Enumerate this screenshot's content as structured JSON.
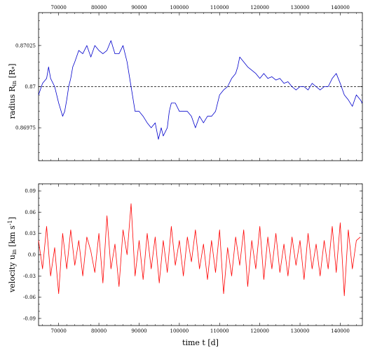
{
  "chart_data": [
    {
      "type": "line",
      "title": "",
      "xlabel": "",
      "ylabel": "radius R",
      "ylabel_sub": "in",
      "ylabel_unit": "[R",
      "ylabel_unit_sub": "*",
      "ylabel_unit_close": "]",
      "xlim": [
        65000,
        145500
      ],
      "ylim": [
        0.86955,
        0.87045
      ],
      "x_ticks": [
        70000,
        80000,
        90000,
        100000,
        110000,
        120000,
        130000,
        140000
      ],
      "x_tick_labels": [
        "70000",
        "80000",
        "90000",
        "100000",
        "110000",
        "120000",
        "130000",
        "140000"
      ],
      "y_ticks": [
        0.86975,
        0.87,
        0.87025
      ],
      "y_tick_labels": [
        "0.86975",
        "0.87",
        "0.87025"
      ],
      "reference_line": {
        "y": 0.87,
        "style": "dashed"
      },
      "series": [
        {
          "color": "#0000cc",
          "x": [
            65000,
            66000,
            67000,
            67500,
            68000,
            69000,
            70000,
            71000,
            71500,
            72000,
            72500,
            73000,
            73500,
            74000,
            75000,
            76000,
            77000,
            78000,
            79000,
            80000,
            81000,
            82000,
            83000,
            84000,
            85000,
            86000,
            87000,
            88000,
            89000,
            90000,
            91000,
            92000,
            93000,
            94000,
            94800,
            95500,
            96000,
            97000,
            97500,
            98000,
            99000,
            100000,
            101000,
            102000,
            103000,
            104000,
            105000,
            106000,
            107000,
            108000,
            109000,
            110000,
            111000,
            112000,
            113000,
            114000,
            114500,
            115000,
            116000,
            117000,
            118000,
            119000,
            120000,
            121000,
            122000,
            123000,
            124000,
            125000,
            126000,
            127000,
            128000,
            129000,
            130000,
            131000,
            132000,
            133000,
            134000,
            135000,
            136000,
            137000,
            138000,
            139000,
            140000,
            141000,
            142000,
            143000,
            144000,
            145000,
            145500
          ],
          "y": [
            0.86995,
            0.87002,
            0.87005,
            0.87012,
            0.87005,
            0.87,
            0.8699,
            0.86982,
            0.86985,
            0.86992,
            0.87,
            0.87005,
            0.87012,
            0.87015,
            0.87022,
            0.8702,
            0.87025,
            0.87018,
            0.87025,
            0.87022,
            0.8702,
            0.87022,
            0.87028,
            0.8702,
            0.8702,
            0.87025,
            0.87015,
            0.87,
            0.86985,
            0.86985,
            0.86982,
            0.86978,
            0.86975,
            0.86978,
            0.86968,
            0.86975,
            0.8697,
            0.86975,
            0.86985,
            0.8699,
            0.8699,
            0.86985,
            0.86985,
            0.86985,
            0.86982,
            0.86975,
            0.86982,
            0.86978,
            0.86982,
            0.86982,
            0.86985,
            0.86995,
            0.86998,
            0.87,
            0.87005,
            0.87008,
            0.87012,
            0.87018,
            0.87015,
            0.87012,
            0.8701,
            0.87008,
            0.87005,
            0.87008,
            0.87005,
            0.87006,
            0.87004,
            0.87005,
            0.87002,
            0.87003,
            0.87,
            0.86998,
            0.87,
            0.87,
            0.86998,
            0.87002,
            0.87,
            0.86998,
            0.87,
            0.87,
            0.87005,
            0.87008,
            0.87002,
            0.86995,
            0.86992,
            0.86988,
            0.86995,
            0.86992,
            0.8699
          ]
        }
      ]
    },
    {
      "type": "line",
      "title": "",
      "xlabel": "time t [d]",
      "ylabel": "velocity u",
      "ylabel_sub": "in",
      "ylabel_unit": "[km s",
      "ylabel_unit_sup": "-1",
      "ylabel_unit_close": "]",
      "xlim": [
        65000,
        145500
      ],
      "ylim": [
        -0.1,
        0.1
      ],
      "x_ticks": [
        70000,
        80000,
        90000,
        100000,
        110000,
        120000,
        130000,
        140000
      ],
      "x_tick_labels": [
        "70000",
        "80000",
        "90000",
        "100000",
        "110000",
        "120000",
        "130000",
        "140000"
      ],
      "y_ticks": [
        -0.09,
        -0.06,
        -0.03,
        0.0,
        0.03,
        0.06,
        0.09
      ],
      "y_tick_labels": [
        "-0.09",
        "-0.06",
        "-0.03",
        "0.0",
        "0.03",
        "0.06",
        "0.09"
      ],
      "series": [
        {
          "color": "#ff0000",
          "x": [
            65000,
            66000,
            67000,
            68000,
            69000,
            70000,
            71000,
            72000,
            73000,
            74000,
            75000,
            76000,
            77000,
            78000,
            79000,
            80000,
            81000,
            82000,
            83000,
            84000,
            85000,
            86000,
            87000,
            88000,
            89000,
            90000,
            91000,
            92000,
            93000,
            94000,
            95000,
            96000,
            97000,
            98000,
            99000,
            100000,
            101000,
            102000,
            103000,
            104000,
            105000,
            106000,
            107000,
            108000,
            109000,
            110000,
            111000,
            112000,
            113000,
            114000,
            115000,
            116000,
            117000,
            118000,
            119000,
            120000,
            121000,
            122000,
            123000,
            124000,
            125000,
            126000,
            127000,
            128000,
            129000,
            130000,
            131000,
            132000,
            133000,
            134000,
            135000,
            136000,
            137000,
            138000,
            139000,
            140000,
            141000,
            142000,
            143000,
            144000,
            145000
          ],
          "y": [
            0.02,
            -0.02,
            0.04,
            -0.03,
            0.01,
            -0.055,
            0.03,
            -0.02,
            0.035,
            -0.015,
            0.02,
            -0.03,
            0.025,
            0.005,
            -0.025,
            0.03,
            -0.04,
            0.055,
            -0.02,
            0.015,
            -0.045,
            0.035,
            0.0,
            0.072,
            -0.03,
            0.02,
            -0.035,
            0.03,
            -0.02,
            0.025,
            -0.04,
            0.02,
            -0.025,
            0.04,
            -0.015,
            0.02,
            -0.03,
            0.025,
            -0.01,
            0.035,
            -0.02,
            0.015,
            -0.035,
            0.02,
            -0.025,
            0.035,
            -0.055,
            0.01,
            -0.03,
            0.025,
            -0.015,
            0.035,
            -0.045,
            0.02,
            -0.02,
            0.04,
            -0.035,
            0.025,
            -0.02,
            0.03,
            -0.025,
            0.015,
            -0.03,
            0.025,
            -0.015,
            0.02,
            -0.035,
            0.03,
            -0.02,
            0.015,
            -0.03,
            0.02,
            -0.02,
            0.04,
            -0.025,
            0.045,
            -0.058,
            0.035,
            -0.02,
            0.02,
            0.025
          ]
        }
      ]
    }
  ]
}
